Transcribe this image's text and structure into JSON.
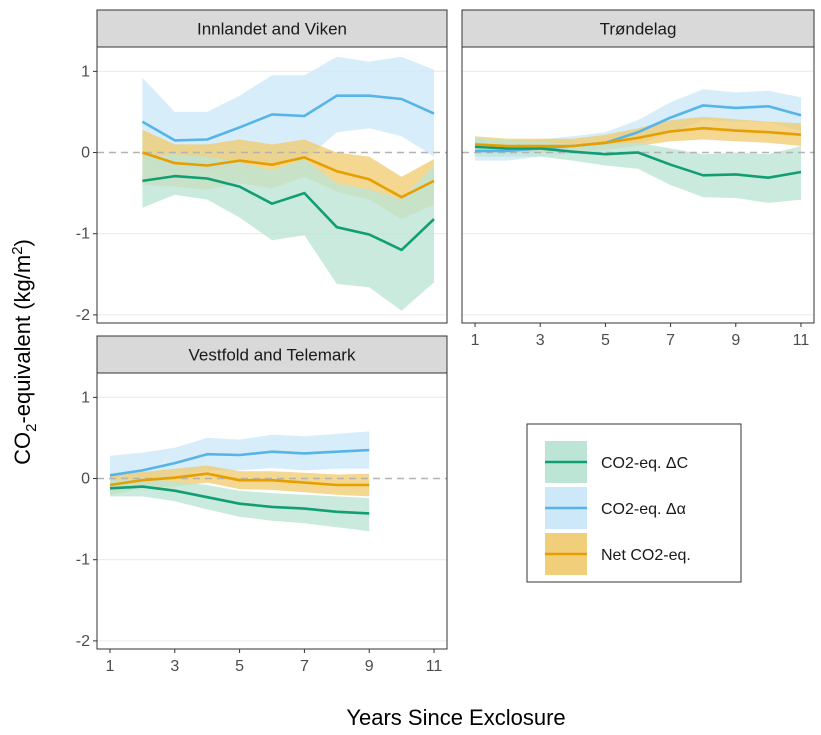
{
  "chart_data": {
    "type": "line",
    "ylabel_main": "CO",
    "ylabel_sub": "2",
    "ylabel_mid": "-equivalent  (kg/m",
    "ylabel_sup": "2",
    "ylabel_end": ")",
    "xlabel": "Years Since Exclosure",
    "ylim": [
      -2.1,
      1.3
    ],
    "y_ticks": [
      -2,
      -1,
      0,
      1
    ],
    "x_ticks": [
      1,
      3,
      5,
      7,
      9,
      11
    ],
    "colors": {
      "dC": "#119e73",
      "dAlpha": "#56b4e9",
      "net": "#e69f00",
      "dC_fill": "#bde5d6",
      "dAlpha_fill": "#cde8f8",
      "net_fill": "#f0c96b"
    },
    "legend": {
      "position": "bottom-right",
      "entries": [
        {
          "key": "dC",
          "label": "CO2-eq. ΔC"
        },
        {
          "key": "dAlpha",
          "label": "CO2-eq. Δα"
        },
        {
          "key": "net",
          "label": "Net CO2-eq."
        }
      ]
    },
    "panels": [
      {
        "title": "Innlandet and Viken",
        "xlim": [
          0.6,
          11.4
        ],
        "series": {
          "dAlpha": {
            "x": [
              2,
              3,
              4,
              5,
              6,
              7,
              8,
              9,
              10,
              11
            ],
            "y": [
              0.38,
              0.15,
              0.16,
              0.31,
              0.47,
              0.45,
              0.7,
              0.7,
              0.66,
              0.48
            ],
            "lo": [
              -0.08,
              -0.32,
              -0.25,
              -0.15,
              -0.12,
              -0.1,
              0.25,
              0.3,
              0.2,
              -0.05
            ],
            "hi": [
              0.92,
              0.5,
              0.5,
              0.7,
              0.95,
              0.95,
              1.18,
              1.12,
              1.18,
              1.02
            ]
          },
          "net": {
            "x": [
              2,
              3,
              4,
              5,
              6,
              7,
              8,
              9,
              10,
              11
            ],
            "y": [
              0.0,
              -0.13,
              -0.16,
              -0.1,
              -0.15,
              -0.06,
              -0.23,
              -0.33,
              -0.55,
              -0.35
            ],
            "lo": [
              -0.4,
              -0.42,
              -0.46,
              -0.38,
              -0.44,
              -0.3,
              -0.48,
              -0.58,
              -0.82,
              -0.64
            ],
            "hi": [
              0.28,
              0.1,
              0.1,
              0.16,
              0.1,
              0.16,
              0.0,
              -0.05,
              -0.3,
              -0.08
            ]
          },
          "dC": {
            "x": [
              2,
              3,
              4,
              5,
              6,
              7,
              8,
              9,
              10,
              11
            ],
            "y": [
              -0.35,
              -0.29,
              -0.32,
              -0.42,
              -0.63,
              -0.5,
              -0.92,
              -1.01,
              -1.2,
              -0.82
            ],
            "lo": [
              -0.68,
              -0.52,
              -0.58,
              -0.8,
              -1.08,
              -1.02,
              -1.62,
              -1.66,
              -1.95,
              -1.6
            ],
            "hi": [
              -0.05,
              -0.02,
              -0.05,
              -0.12,
              -0.22,
              -0.08,
              -0.38,
              -0.45,
              -0.58,
              -0.15
            ]
          }
        }
      },
      {
        "title": "Trøndelag",
        "xlim": [
          0.6,
          11.4
        ],
        "series": {
          "dAlpha": {
            "x": [
              1,
              2,
              3,
              4,
              5,
              6,
              7,
              8,
              9,
              10,
              11
            ],
            "y": [
              0.02,
              0.02,
              0.05,
              0.08,
              0.12,
              0.25,
              0.43,
              0.58,
              0.55,
              0.57,
              0.46
            ],
            "lo": [
              -0.1,
              -0.1,
              -0.05,
              -0.02,
              0.02,
              0.1,
              0.25,
              0.4,
              0.38,
              0.38,
              0.26
            ],
            "hi": [
              0.14,
              0.15,
              0.16,
              0.2,
              0.25,
              0.4,
              0.62,
              0.78,
              0.74,
              0.76,
              0.68
            ]
          },
          "net": {
            "x": [
              1,
              2,
              3,
              4,
              5,
              6,
              7,
              8,
              9,
              10,
              11
            ],
            "y": [
              0.1,
              0.08,
              0.08,
              0.08,
              0.12,
              0.18,
              0.26,
              0.3,
              0.27,
              0.25,
              0.22
            ],
            "lo": [
              0.0,
              0.0,
              0.0,
              0.01,
              0.04,
              0.08,
              0.14,
              0.16,
              0.14,
              0.12,
              0.08
            ],
            "hi": [
              0.2,
              0.17,
              0.17,
              0.17,
              0.22,
              0.3,
              0.4,
              0.44,
              0.41,
              0.38,
              0.36
            ]
          },
          "dC": {
            "x": [
              1,
              2,
              3,
              4,
              5,
              6,
              7,
              8,
              9,
              10,
              11
            ],
            "y": [
              0.07,
              0.05,
              0.05,
              0.01,
              -0.02,
              0.0,
              -0.15,
              -0.28,
              -0.27,
              -0.31,
              -0.24
            ],
            "lo": [
              -0.05,
              -0.05,
              -0.05,
              -0.1,
              -0.16,
              -0.2,
              -0.4,
              -0.55,
              -0.56,
              -0.62,
              -0.58
            ],
            "hi": [
              0.18,
              0.15,
              0.14,
              0.1,
              0.1,
              0.12,
              0.05,
              -0.02,
              0.0,
              -0.02,
              0.08
            ]
          }
        }
      },
      {
        "title": "Vestfold and Telemark",
        "xlim": [
          0.6,
          11.4
        ],
        "series": {
          "dAlpha": {
            "x": [
              1,
              2,
              3,
              4,
              5,
              6,
              7,
              8,
              9
            ],
            "y": [
              0.04,
              0.1,
              0.19,
              0.3,
              0.29,
              0.33,
              0.31,
              0.33,
              0.35
            ],
            "lo": [
              -0.2,
              -0.1,
              0.02,
              0.1,
              0.1,
              0.13,
              0.1,
              0.12,
              0.12
            ],
            "hi": [
              0.28,
              0.32,
              0.38,
              0.5,
              0.48,
              0.54,
              0.52,
              0.55,
              0.58
            ]
          },
          "net": {
            "x": [
              1,
              2,
              3,
              4,
              5,
              6,
              7,
              8,
              9
            ],
            "y": [
              -0.08,
              -0.02,
              0.01,
              0.06,
              -0.02,
              -0.02,
              -0.05,
              -0.08,
              -0.08
            ],
            "lo": [
              -0.2,
              -0.12,
              -0.1,
              -0.05,
              -0.13,
              -0.14,
              -0.17,
              -0.2,
              -0.22
            ],
            "hi": [
              0.04,
              0.08,
              0.12,
              0.16,
              0.09,
              0.09,
              0.07,
              0.05,
              0.06
            ]
          },
          "dC": {
            "x": [
              1,
              2,
              3,
              4,
              5,
              6,
              7,
              8,
              9
            ],
            "y": [
              -0.12,
              -0.1,
              -0.15,
              -0.23,
              -0.31,
              -0.35,
              -0.37,
              -0.41,
              -0.43
            ],
            "lo": [
              -0.22,
              -0.22,
              -0.28,
              -0.38,
              -0.47,
              -0.52,
              -0.55,
              -0.6,
              -0.65
            ],
            "hi": [
              -0.02,
              0.0,
              -0.04,
              -0.08,
              -0.15,
              -0.18,
              -0.2,
              -0.22,
              -0.24
            ]
          }
        }
      }
    ]
  }
}
